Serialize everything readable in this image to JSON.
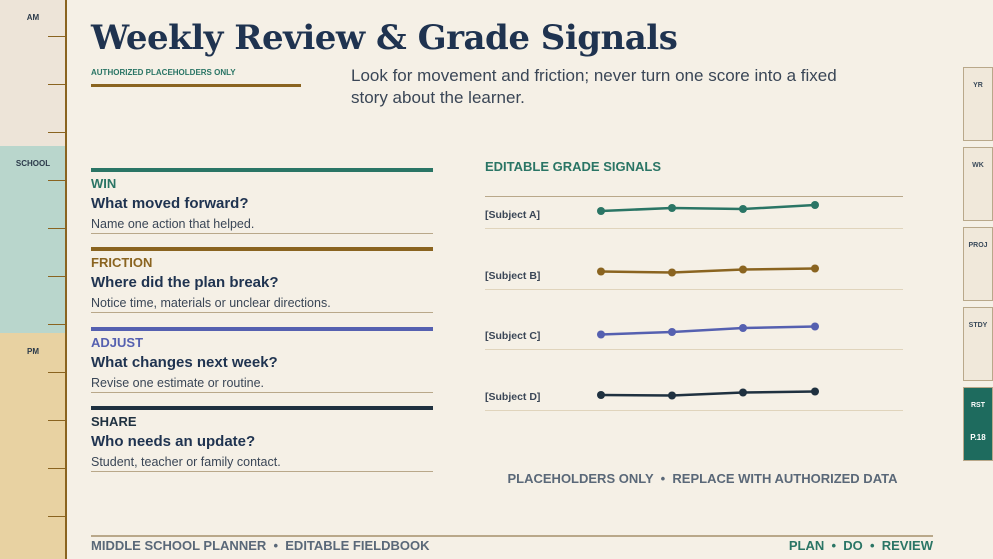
{
  "rail": {
    "am": "AM",
    "school": "SCHOOL",
    "pm": "PM"
  },
  "header": {
    "title": "Weekly Review & Grade Signals",
    "tag": "AUTHORIZED PLACEHOLDERS ONLY",
    "lede": "Look for movement and friction; never turn one score into a fixed story about the learner."
  },
  "sections": [
    {
      "label": "WIN",
      "question": "What moved forward?",
      "prompt": "Name one action that helped.",
      "color": "#2a7565"
    },
    {
      "label": "FRICTION",
      "question": "Where did the plan break?",
      "prompt": "Notice time, materials or unclear directions.",
      "color": "#8a6420"
    },
    {
      "label": "ADJUST",
      "question": "What changes next week?",
      "prompt": "Revise one estimate or routine.",
      "color": "#5560b0"
    },
    {
      "label": "SHARE",
      "question": "Who needs an update?",
      "prompt": "Student, teacher or family contact.",
      "color": "#1f3140"
    }
  ],
  "signals": {
    "heading": "EDITABLE GRADE SIGNALS",
    "rows": [
      {
        "subject": "[Subject A]",
        "color": "#2a7565",
        "values": [
          1,
          1.6,
          1.4,
          2.2
        ]
      },
      {
        "subject": "[Subject B]",
        "color": "#8a6420",
        "values": [
          1,
          0.8,
          1.4,
          1.6
        ]
      },
      {
        "subject": "[Subject C]",
        "color": "#5560b0",
        "values": [
          0.5,
          1,
          1.8,
          2.1
        ]
      },
      {
        "subject": "[Subject D]",
        "color": "#1f3140",
        "values": [
          0.5,
          0.4,
          1,
          1.2
        ]
      }
    ],
    "note": "PLACEHOLDERS ONLY  •  REPLACE WITH AUTHORIZED DATA"
  },
  "footer": {
    "left": "MIDDLE SCHOOL PLANNER  •  EDITABLE FIELDBOOK",
    "right": "PLAN  •  DO  •  REVIEW"
  },
  "tabs": [
    "YR",
    "WK",
    "PROJ",
    "STDY",
    "RST"
  ],
  "page": "P.18"
}
